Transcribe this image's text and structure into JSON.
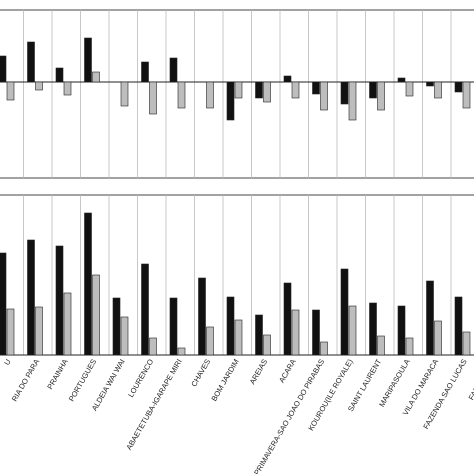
{
  "chart_data": [
    {
      "type": "bar",
      "categories": [
        "U",
        "RIA DO PARA",
        "PRAINHA",
        "PORTUGUES",
        "ALDEIA WAI WAI",
        "LOURENCO",
        "ABAETETUBA-IGARAPE MIRI",
        "CHAVES",
        "BOM JARDIM",
        "AREIAS",
        "ACARA",
        "PRIMAVERA-SAO JOAO DO PIRABAS",
        "KOUROU(ILE ROYALE)",
        "SAINT LAURENT",
        "MARIPASOULA",
        "VILA DO MARACA",
        "FAZENDA SAO LUCAS"
      ],
      "series": [
        {
          "color": "#111111",
          "values": [
            26,
            40,
            14,
            44,
            0,
            20,
            24,
            0,
            -38,
            -16,
            6,
            -12,
            -22,
            -16,
            4,
            -4,
            -10
          ]
        },
        {
          "color": "#bdbdbd",
          "values": [
            -18,
            -8,
            -13,
            10,
            -24,
            -32,
            -26,
            -26,
            -16,
            -20,
            -16,
            -28,
            -38,
            -28,
            -14,
            -16,
            -26
          ]
        }
      ],
      "ylim": [
        -96,
        72
      ]
    },
    {
      "type": "bar",
      "categories": [
        "U",
        "RIA DO PARA",
        "PRAINHA",
        "PORTUGUES",
        "ALDEIA WAI WAI",
        "LOURENCO",
        "ABAETETUBA-IGARAPE MIRI",
        "CHAVES",
        "BOM JARDIM",
        "AREIAS",
        "ACARA",
        "PRIMAVERA-SAO JOAO DO PIRABAS",
        "KOUROU(ILE ROYALE)",
        "SAINT LAURENT",
        "MARIPASOULA",
        "VILA DO MARACA",
        "FAZENDA SAO LUCAS",
        "FAZENDA PA"
      ],
      "series": [
        {
          "color": "#111111",
          "values": [
            102,
            115,
            109,
            142,
            57,
            91,
            57,
            77,
            58,
            40,
            72,
            45,
            86,
            52,
            49,
            74,
            58,
            null
          ]
        },
        {
          "color": "#bdbdbd",
          "values": [
            46,
            48,
            62,
            80,
            38,
            17,
            7,
            28,
            35,
            20,
            45,
            13,
            49,
            19,
            17,
            34,
            23,
            null
          ]
        }
      ],
      "ylim": [
        0,
        160
      ]
    }
  ]
}
